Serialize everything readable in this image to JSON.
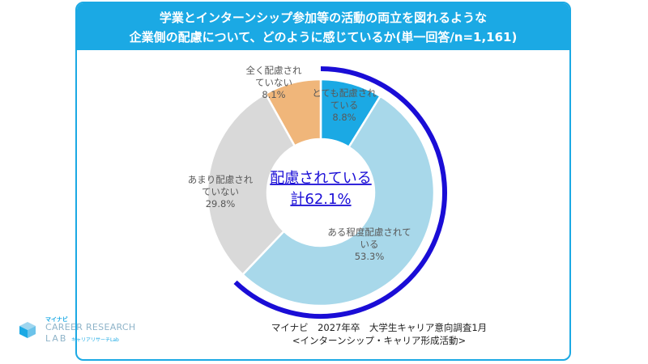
{
  "header": {
    "line1": "学業とインターンシップ参加等の活動の両立を図れるような",
    "line2": "企業側の配慮について、どのように感じているか(単一回答/n=1,161)"
  },
  "chart_data": {
    "type": "pie",
    "title": "学業とインターンシップ参加等の活動の両立を図れるような企業側の配慮について、どのように感じているか(単一回答/n=1,161)",
    "slices": [
      {
        "label": [
          "とても配慮され",
          "ている"
        ],
        "value": 8.8,
        "display": "8.8%",
        "color": "#1ba9e4"
      },
      {
        "label": [
          "ある程度配慮されて",
          "いる"
        ],
        "value": 53.3,
        "display": "53.3%",
        "color": "#a8d8ea"
      },
      {
        "label": [
          "あまり配慮され",
          "ていない"
        ],
        "value": 29.8,
        "display": "29.8%",
        "color": "#d9d9d9"
      },
      {
        "label": [
          "全く配慮され",
          "ていない"
        ],
        "value": 8.1,
        "display": "8.1%",
        "color": "#f0b67a"
      }
    ],
    "highlight": {
      "line1": "配慮されている",
      "line2": "計62.1%",
      "covers": [
        "とても配慮され",
        "ある程度配慮されて"
      ],
      "color": "#1a0dd6"
    }
  },
  "source": {
    "line1": "マイナビ　2027年卒　大学生キャリア意向調査1月",
    "line2": "<インターンシップ・キャリア形成活動>"
  },
  "logo": {
    "small": "マイナビ",
    "name": "CAREER RESEARCH",
    "lab": "LAB",
    "sub": "キャリアリサーチLab"
  }
}
